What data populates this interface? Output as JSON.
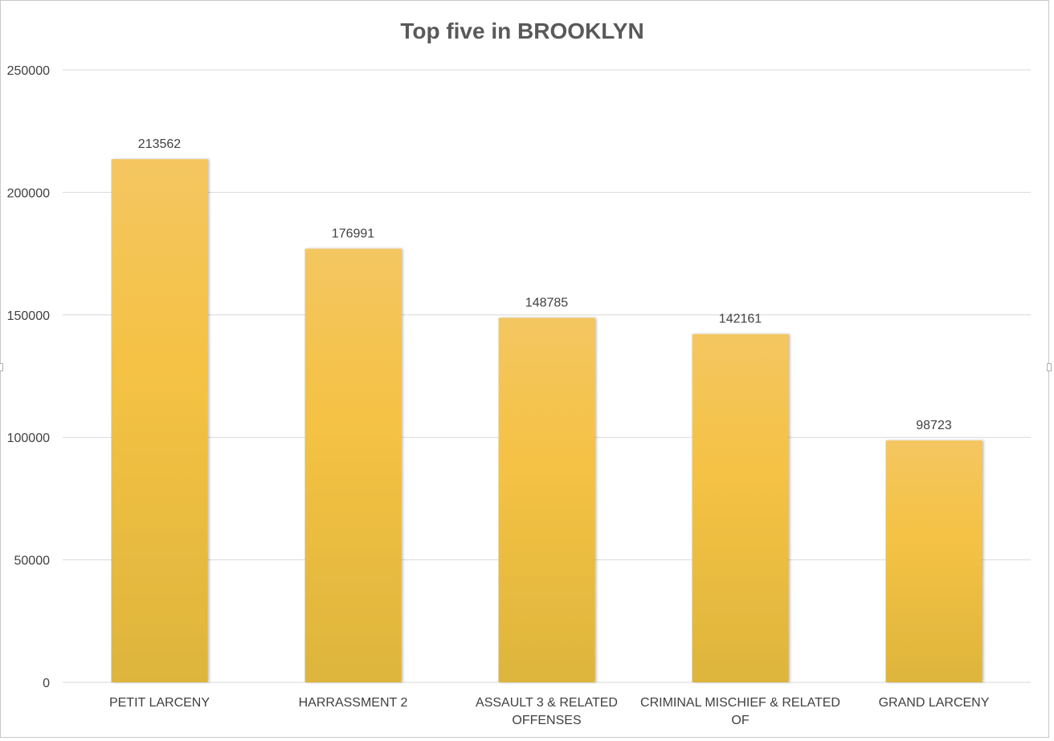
{
  "chart_data": {
    "type": "bar",
    "title": "Top five in BROOKLYN",
    "categories": [
      [
        "PETIT LARCENY"
      ],
      [
        "HARRASSMENT 2"
      ],
      [
        "ASSAULT 3 & RELATED",
        "OFFENSES"
      ],
      [
        "CRIMINAL MISCHIEF & RELATED",
        "OF"
      ],
      [
        "GRAND LARCENY"
      ]
    ],
    "values": [
      213562,
      176991,
      148785,
      142161,
      98723
    ],
    "data_labels": [
      "213562",
      "176991",
      "148785",
      "142161",
      "98723"
    ],
    "y_ticks": [
      "0",
      "50000",
      "100000",
      "150000",
      "200000",
      "250000"
    ],
    "ylim": [
      0,
      250000
    ],
    "xlabel": "",
    "ylabel": "",
    "grid": true,
    "legend": "none",
    "colors": {
      "bar_top": "#F4C660",
      "bar_mid": "#F5C244",
      "bar_bottom": "#DDB53C",
      "grid": "#d9d9d9",
      "text": "#404040",
      "title": "#595959"
    }
  }
}
